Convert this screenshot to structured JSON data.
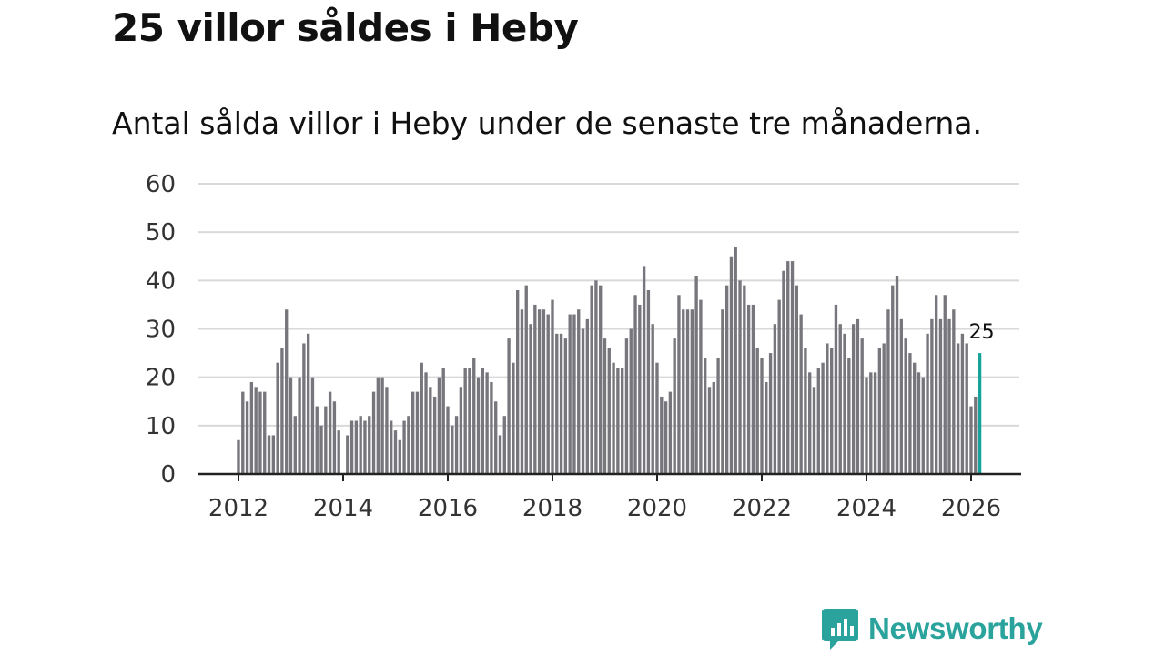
{
  "header": {
    "title": "25 villor såldes i Heby",
    "subtitle": "Antal sålda villor i Heby under de senaste tre månaderna."
  },
  "brand": {
    "name": "Newsworthy",
    "icon": "newsworthy-logo-icon",
    "color": "#2aa39c"
  },
  "colors": {
    "bar": "#77767c",
    "highlight": "#16a39c",
    "grid": "#d9d9d9",
    "axis": "#222222"
  },
  "chart_data": {
    "type": "bar",
    "title": "Antal sålda villor i Heby under de senaste tre månaderna.",
    "xlabel": "",
    "ylabel": "",
    "ylim": [
      0,
      60
    ],
    "yticks": [
      0,
      10,
      20,
      30,
      40,
      50,
      60
    ],
    "xlim": [
      2011.5,
      2027.0
    ],
    "xticks": [
      "2012",
      "2014",
      "2016",
      "2018",
      "2020",
      "2022",
      "2024",
      "2026"
    ],
    "grid": true,
    "start": "2012-01",
    "frequency": "monthly",
    "values": [
      7,
      17,
      15,
      19,
      18,
      17,
      17,
      8,
      8,
      23,
      26,
      34,
      20,
      12,
      20,
      27,
      29,
      20,
      14,
      10,
      14,
      17,
      15,
      9,
      0,
      8,
      11,
      11,
      12,
      11,
      12,
      17,
      20,
      20,
      18,
      11,
      9,
      7,
      11,
      12,
      17,
      17,
      23,
      21,
      18,
      16,
      20,
      22,
      14,
      10,
      12,
      18,
      22,
      22,
      24,
      20,
      22,
      21,
      19,
      15,
      8,
      12,
      28,
      23,
      38,
      34,
      39,
      31,
      35,
      34,
      34,
      33,
      36,
      29,
      29,
      28,
      33,
      33,
      34,
      30,
      32,
      39,
      40,
      39,
      28,
      26,
      23,
      22,
      22,
      28,
      30,
      37,
      35,
      43,
      38,
      31,
      23,
      16,
      15,
      17,
      28,
      37,
      34,
      34,
      34,
      41,
      36,
      24,
      18,
      19,
      24,
      34,
      39,
      45,
      47,
      40,
      39,
      35,
      35,
      26,
      24,
      19,
      25,
      31,
      36,
      42,
      44,
      44,
      39,
      33,
      26,
      21,
      18,
      22,
      23,
      27,
      26,
      35,
      31,
      29,
      24,
      31,
      32,
      28,
      20,
      21,
      21,
      26,
      27,
      34,
      39,
      41,
      32,
      28,
      25,
      23,
      21,
      20,
      29,
      32,
      37,
      32,
      37,
      32,
      34,
      27,
      29,
      27,
      14,
      16,
      25
    ],
    "highlight": {
      "period": "2026-03",
      "value": 25,
      "label": "25"
    }
  }
}
